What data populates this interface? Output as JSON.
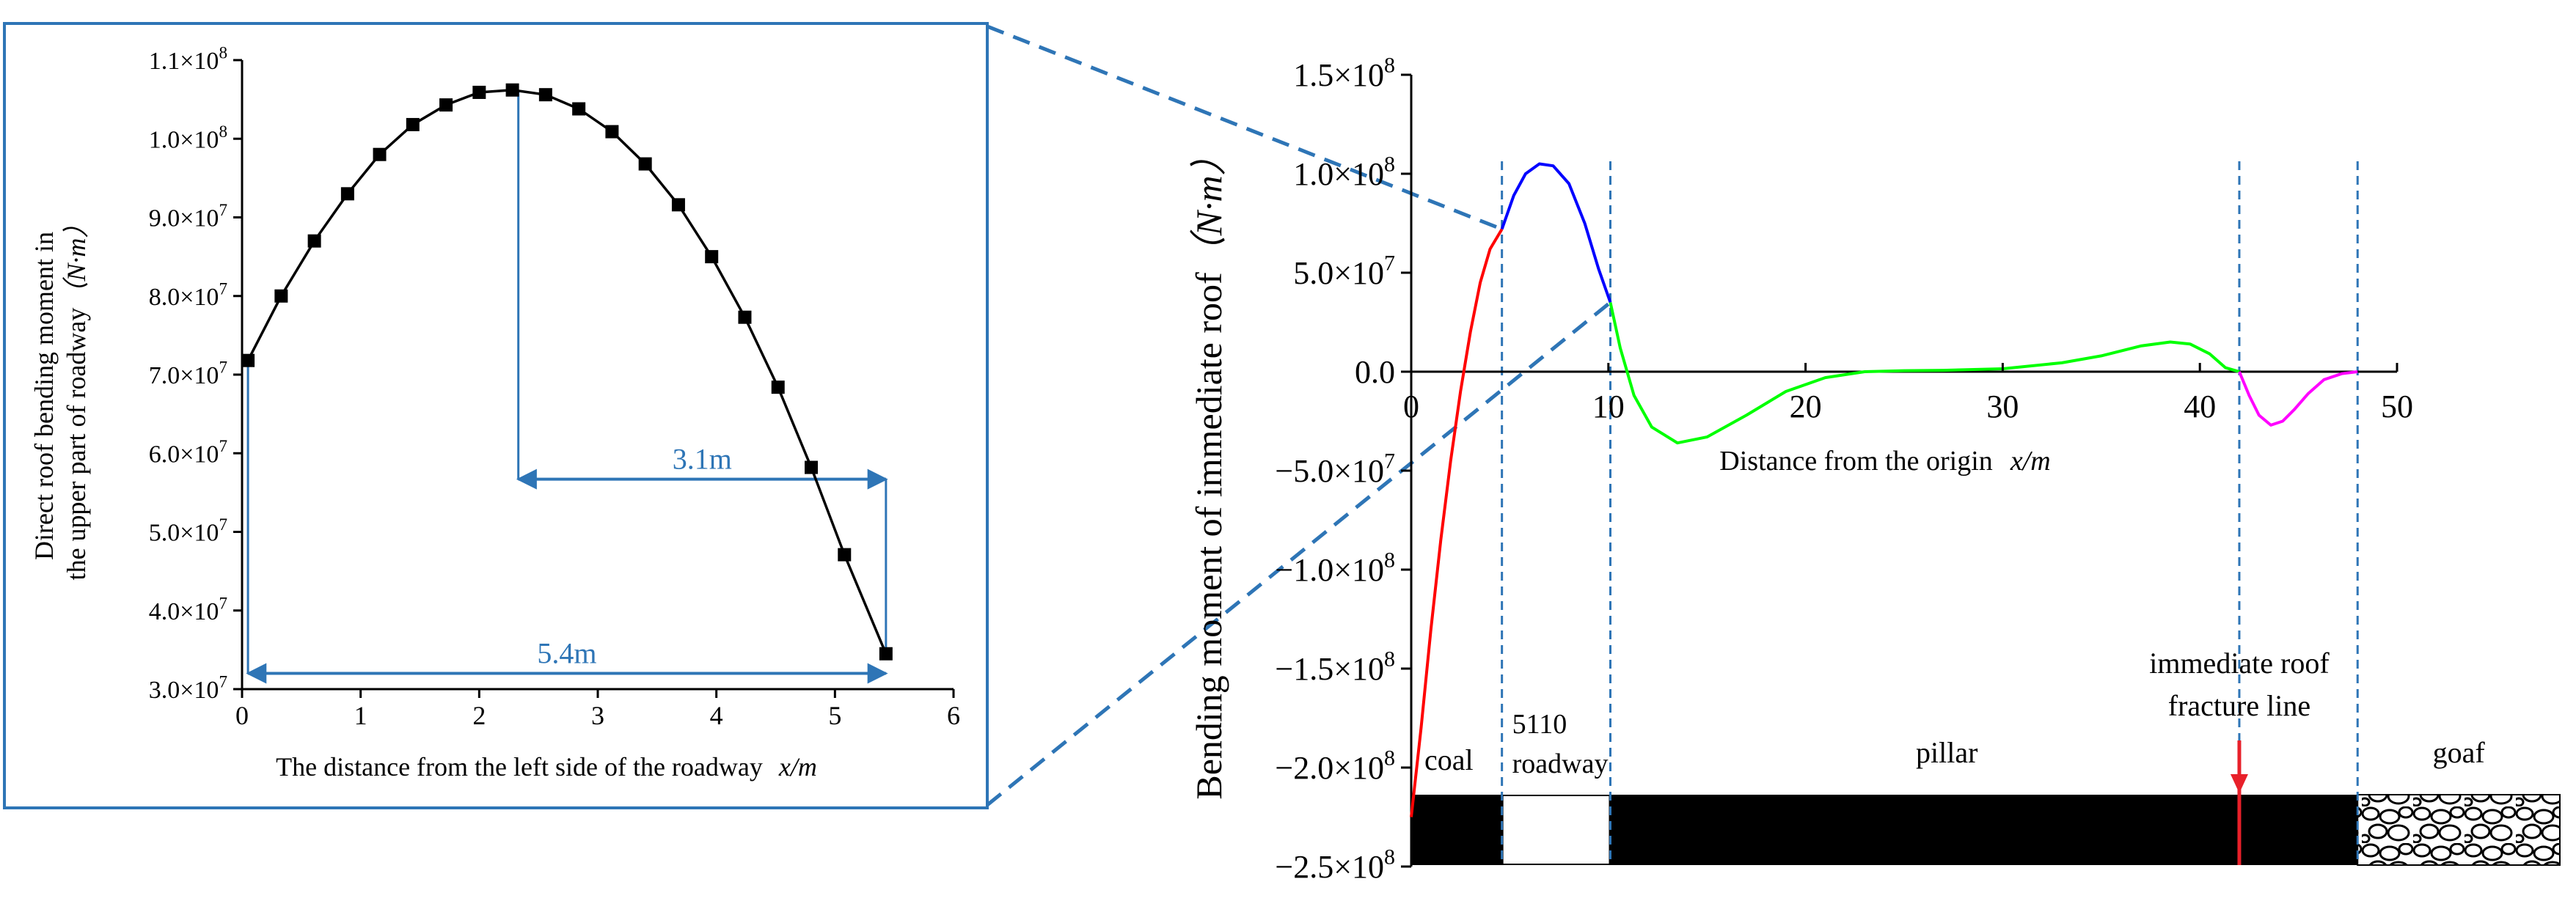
{
  "chart_data": [
    {
      "type": "line",
      "title": "",
      "xlabel": "The distance from the left side of the roadway",
      "xlabel_var": "x/m",
      "ylabel_line1": "Direct roof bending moment in",
      "ylabel_line2": "the upper part of roadway",
      "ylabel_unit": "（N·m）",
      "xlim": [
        0,
        6
      ],
      "ylim": [
        30000000,
        110000000
      ],
      "x_ticks": [
        "0",
        "1",
        "2",
        "3",
        "4",
        "5",
        "6"
      ],
      "y_ticks": [
        {
          "base": "3.0×10",
          "exp": "7"
        },
        {
          "base": "4.0×10",
          "exp": "7"
        },
        {
          "base": "5.0×10",
          "exp": "7"
        },
        {
          "base": "6.0×10",
          "exp": "7"
        },
        {
          "base": "7.0×10",
          "exp": "7"
        },
        {
          "base": "8.0×10",
          "exp": "7"
        },
        {
          "base": "9.0×10",
          "exp": "7"
        },
        {
          "base": "1.0×10",
          "exp": "8"
        },
        {
          "base": "1.1×10",
          "exp": "8"
        }
      ],
      "x": [
        0.05,
        0.33,
        0.61,
        0.89,
        1.16,
        1.44,
        1.72,
        2.0,
        2.28,
        2.56,
        2.84,
        3.12,
        3.4,
        3.68,
        3.96,
        4.24,
        4.52,
        4.8,
        5.08,
        5.43
      ],
      "y": [
        71800000,
        80000000,
        87000000,
        93000000,
        98000000,
        101800000,
        104300000,
        105900000,
        106200000,
        105600000,
        103800000,
        100900000,
        96800000,
        91600000,
        85000000,
        77300000,
        68400000,
        58200000,
        47100000,
        34500000
      ],
      "marker": "square",
      "annotations": [
        {
          "text": "3.1m",
          "from_x": 2.33,
          "to_x": 5.43
        },
        {
          "text": "5.4m",
          "from_x": 0.05,
          "to_x": 5.43
        }
      ]
    },
    {
      "type": "line",
      "title": "",
      "xlabel": "Distance from the origin",
      "xlabel_var": "x/m",
      "ylabel": "Bending moment of immediate roof",
      "ylabel_unit": "（N·m）",
      "xlim": [
        0,
        50
      ],
      "ylim": [
        -250000000,
        150000000
      ],
      "x_ticks": [
        "0",
        "10",
        "20",
        "30",
        "40",
        "50"
      ],
      "y_ticks": [
        {
          "base": "1.5×10",
          "exp": "8"
        },
        {
          "base": "1.0×10",
          "exp": "8"
        },
        {
          "base": "5.0×10",
          "exp": "7"
        },
        {
          "base": "0.0",
          "exp": ""
        },
        {
          "base": "−5.0×10",
          "exp": "7"
        },
        {
          "base": "−1.0×10",
          "exp": "8"
        },
        {
          "base": "−1.5×10",
          "exp": "8"
        },
        {
          "base": "−2.0×10",
          "exp": "8"
        },
        {
          "base": "−2.5×10",
          "exp": "8"
        }
      ],
      "series": [
        {
          "color": "#ff0000",
          "x": [
            0,
            0.5,
            1,
            1.5,
            2,
            2.5,
            3,
            3.5,
            4,
            4.6
          ],
          "y": [
            -225000000,
            -180000000,
            -130000000,
            -85000000,
            -45000000,
            -10000000,
            20000000,
            45000000,
            62000000,
            72000000
          ]
        },
        {
          "color": "#0000ff",
          "x": [
            4.6,
            5.2,
            5.8,
            6.5,
            7.2,
            8.0,
            8.8,
            9.5,
            10.1
          ],
          "y": [
            72000000,
            89000000,
            100000000,
            105000000,
            104000000,
            95000000,
            75000000,
            52000000,
            35000000
          ]
        },
        {
          "color": "#00ff00",
          "x": [
            10.1,
            10.6,
            11.3,
            12.2,
            13.5,
            15,
            17,
            19,
            21,
            23,
            25,
            27,
            30,
            33,
            35,
            37,
            38.5,
            39.5,
            40.5,
            41.3,
            42.0
          ],
          "y": [
            35000000,
            12000000,
            -12000000,
            -28000000,
            -36000000,
            -33000000,
            -22000000,
            -10000000,
            -3000000,
            0,
            500000,
            700000,
            1500000,
            4500000,
            8000000,
            13000000,
            15000000,
            14000000,
            9000000,
            2000000,
            0
          ]
        },
        {
          "color": "#ff00ff",
          "x": [
            42.0,
            42.5,
            43.0,
            43.6,
            44.2,
            44.8,
            45.5,
            46.3,
            47.2,
            48.0
          ],
          "y": [
            0,
            -12000000,
            -22000000,
            -27000000,
            -25000000,
            -19000000,
            -11000000,
            -4000000,
            -1000000,
            0
          ]
        }
      ],
      "vlines_x": [
        4.6,
        10.1,
        42.0,
        48.0
      ],
      "fracture_x": 42.0,
      "strata": {
        "coal": "coal",
        "roadway_line1": "5110",
        "roadway_line2": "roadway",
        "pillar": "pillar",
        "fracture_line1": "immediate roof",
        "fracture_line2": "fracture line",
        "goaf": "goaf"
      }
    }
  ]
}
